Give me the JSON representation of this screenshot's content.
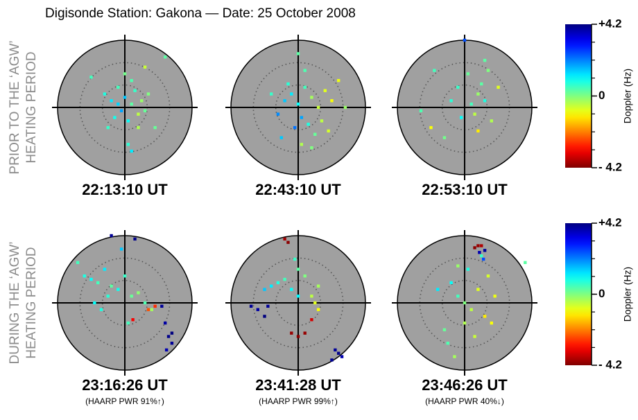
{
  "title": "Digisonde Station: Gakona — Date: 25 October 2008",
  "row_labels": [
    [
      "PRIOR TO THE ‘AGW’",
      "HEATING PERIOD"
    ],
    [
      "DURING THE ‘AGW’",
      "HEATING PERIOD"
    ]
  ],
  "colorbar": {
    "label": "Doppler (Hz)",
    "ylim": [
      -4.2,
      4.2
    ],
    "yticks": [
      {
        "value": 4.2,
        "label": "+4.2"
      },
      0,
      {
        "value": -4.2,
        "label": "- 4.2"
      }
    ],
    "colormap": "jet"
  },
  "chart_data": [
    {
      "type": "scatter",
      "title": "22:13:10 UT",
      "x": [
        -0.3,
        -0.2,
        -0.1,
        0,
        0.1,
        0.2,
        0.15,
        -0.05,
        0.05,
        0.25,
        -0.15,
        0.3,
        0.1,
        0,
        -0.25,
        0.2,
        0.35,
        0.6,
        -0.5,
        0.05,
        0.1,
        -0.1,
        0.45,
        0.3
      ],
      "y": [
        0.2,
        0.1,
        0.3,
        0.15,
        0.05,
        -0.1,
        0.25,
        -0.05,
        -0.2,
        0.1,
        -0.15,
        -0.05,
        0.4,
        0.5,
        -0.3,
        -0.3,
        0.2,
        0.75,
        0.45,
        -0.55,
        -0.65,
        0.05,
        -0.3,
        0.6
      ],
      "values": [
        0.8,
        1.2,
        0.5,
        1.5,
        0.3,
        -0.5,
        0.6,
        1.8,
        1.0,
        -0.2,
        0.9,
        0.2,
        0.4,
        0.1,
        0.6,
        -0.4,
        0.0,
        0.3,
        0.5,
        0.7,
        1.2,
        1.4,
        0.2,
        -0.6
      ]
    },
    {
      "type": "scatter",
      "title": "22:43:10 UT",
      "x": [
        -0.2,
        -0.1,
        0,
        0.1,
        0.2,
        0.3,
        -0.3,
        0.05,
        -0.05,
        0.15,
        0.4,
        0.5,
        -0.15,
        0.25,
        0.35,
        0.1,
        -0.25,
        0.6,
        0.7,
        0.0,
        -0.4,
        0.2,
        0.45,
        0.05
      ],
      "y": [
        0.1,
        0.2,
        0.05,
        0.3,
        0.15,
        0.0,
        -0.1,
        -0.15,
        -0.3,
        -0.25,
        0.25,
        0.1,
        0.35,
        -0.4,
        -0.2,
        0.55,
        -0.45,
        0.4,
        0.0,
        0.8,
        0.2,
        -0.6,
        -0.35,
        -0.55
      ],
      "values": [
        1.5,
        1.2,
        1.0,
        0.5,
        -0.3,
        -0.6,
        2.0,
        1.8,
        2.2,
        0.8,
        -0.8,
        -1.0,
        0.7,
        0.2,
        -0.5,
        0.4,
        1.5,
        -0.9,
        -0.2,
        0.3,
        0.6,
        0.0,
        -0.7,
        -0.4
      ]
    },
    {
      "type": "scatter",
      "title": "22:53:10 UT",
      "x": [
        0.1,
        0.2,
        0.3,
        0.15,
        0.25,
        -0.1,
        0.4,
        0.05,
        -0.2,
        0.35,
        0.5,
        -0.5,
        -0.65,
        -0.45,
        0.0,
        0.2,
        -0.3,
        -0.05,
        0.3
      ],
      "y": [
        0.05,
        0.2,
        0.1,
        -0.1,
        0.35,
        0.3,
        -0.2,
        0.5,
        0.1,
        0.55,
        0.3,
        -0.3,
        -0.05,
        0.55,
        1.0,
        -0.35,
        -0.45,
        -0.15,
        0.7
      ],
      "values": [
        0.5,
        -0.2,
        0.8,
        -0.5,
        0.3,
        0.6,
        -0.4,
        0.2,
        0.7,
        0.0,
        -0.8,
        -1.0,
        0.4,
        0.5,
        2.5,
        -1.2,
        0.1,
        1.0,
        0.3
      ]
    },
    {
      "type": "scatter",
      "title": "23:16:26 UT",
      "note": "(HAARP PWR 91%↑)",
      "x": [
        -0.6,
        -0.5,
        -0.4,
        -0.3,
        -0.2,
        -0.1,
        0,
        0.1,
        0.2,
        0.3,
        0.35,
        0.45,
        -0.45,
        -0.25,
        0.05,
        0.4,
        -0.05,
        0.55,
        0.6,
        0.65,
        0.7,
        0.7,
        0.62,
        -0.2,
        0.15,
        -0.7,
        0.12,
        -0.35
      ],
      "y": [
        0.4,
        0.35,
        0.3,
        0.5,
        0.25,
        0.2,
        0.4,
        0.1,
        0.15,
        0.0,
        -0.1,
        -0.05,
        0.0,
        0.1,
        -0.3,
        -0.1,
        0.8,
        -0.05,
        -0.3,
        -0.5,
        -0.6,
        -0.45,
        -0.7,
        1.0,
        0.95,
        0.6,
        -0.25,
        -0.1
      ],
      "values": [
        0.8,
        1.0,
        0.5,
        1.2,
        0.3,
        0.9,
        0.6,
        0.2,
        -0.1,
        0.4,
        -2.5,
        -2.8,
        1.0,
        0.7,
        0.5,
        -0.3,
        1.5,
        4.0,
        3.9,
        4.1,
        4.0,
        4.2,
        3.8,
        4.0,
        4.1,
        0.5,
        -3.2,
        0.8
      ]
    },
    {
      "type": "scatter",
      "title": "23:41:28 UT",
      "note": "(HAARP PWR 99%↑)",
      "x": [
        -0.5,
        -0.4,
        -0.3,
        -0.2,
        -0.1,
        0,
        0.1,
        0.2,
        0.25,
        0.3,
        -0.7,
        -0.6,
        -0.5,
        -0.45,
        -0.1,
        0,
        0.1,
        0.2,
        -0.2,
        0.55,
        0.6,
        0.65,
        0.5,
        -0.15,
        -0.05,
        0.3,
        0.0
      ],
      "y": [
        0.2,
        0.25,
        0.3,
        0.35,
        0.2,
        0.5,
        0.4,
        0.1,
        0.0,
        -0.1,
        -0.05,
        -0.1,
        -0.2,
        -0.05,
        -0.45,
        -0.5,
        -0.45,
        -0.25,
        0.95,
        -0.7,
        -0.75,
        -0.8,
        -0.85,
        0.9,
        0.65,
        0.25,
        0.1
      ],
      "values": [
        1.5,
        1.2,
        0.8,
        0.5,
        1.0,
        0.3,
        0.0,
        -0.5,
        -0.8,
        -1.0,
        4.0,
        3.9,
        4.2,
        4.0,
        -4.0,
        -4.1,
        -4.0,
        -3.5,
        -3.9,
        4.0,
        4.1,
        3.8,
        4.0,
        -4.1,
        0.6,
        -0.3,
        1.1
      ]
    },
    {
      "type": "scatter",
      "title": "23:46:26 UT",
      "note": "(HAARP PWR 40%↓)",
      "x": [
        -0.2,
        -0.1,
        0,
        0.1,
        0.2,
        0.3,
        0.4,
        -0.3,
        -0.25,
        -0.15,
        0.05,
        0.25,
        0.35,
        0.15,
        0.2,
        0.25,
        0.15,
        0.22,
        0.3,
        0.28,
        -0.4,
        0.0,
        -0.1,
        0.45,
        0.9
      ],
      "y": [
        0.3,
        0.1,
        0.0,
        -0.1,
        0.2,
        -0.2,
        -0.3,
        -0.4,
        -0.6,
        -0.8,
        0.5,
        0.7,
        0.4,
        -0.5,
        0.85,
        0.85,
        0.82,
        0.75,
        0.78,
        0.65,
        0.2,
        -0.3,
        0.55,
        0.1,
        0.6
      ],
      "values": [
        1.0,
        0.5,
        0.0,
        -0.5,
        -0.8,
        -1.2,
        -1.0,
        0.2,
        0.4,
        -0.3,
        0.8,
        0.6,
        -0.7,
        -0.6,
        -4.0,
        -3.8,
        -4.1,
        3.8,
        4.0,
        2.5,
        1.2,
        -0.4,
        -0.2,
        -0.9,
        0.3
      ]
    }
  ]
}
